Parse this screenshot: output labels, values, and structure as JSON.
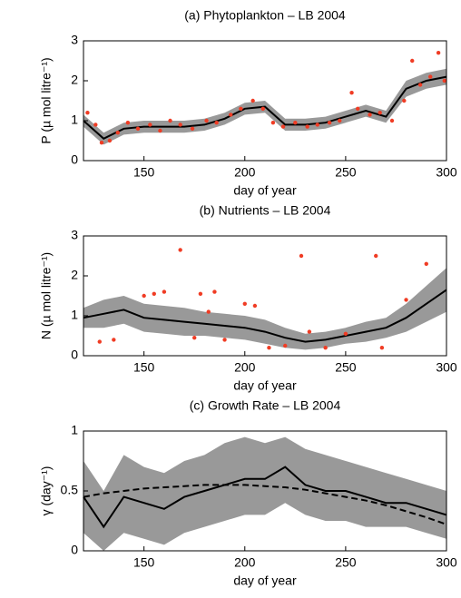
{
  "chart_data": [
    {
      "type": "line",
      "title": "(a) Phytoplankton – LB 2004",
      "xlabel": "day of year",
      "ylabel": "P (µ mol litre⁻¹)",
      "xlim": [
        120,
        300
      ],
      "ylim": [
        0,
        3
      ],
      "xticks": [
        150,
        200,
        250,
        300
      ],
      "yticks": [
        0,
        1,
        2,
        3
      ],
      "x": [
        120,
        130,
        140,
        150,
        160,
        170,
        180,
        190,
        200,
        210,
        220,
        230,
        240,
        250,
        260,
        270,
        280,
        290,
        300
      ],
      "band": {
        "color": "#999999",
        "upper": [
          1.15,
          0.7,
          0.95,
          1.0,
          1.0,
          1.0,
          1.05,
          1.2,
          1.45,
          1.5,
          1.05,
          1.05,
          1.1,
          1.25,
          1.4,
          1.25,
          2.0,
          2.2,
          2.3
        ],
        "lower": [
          0.85,
          0.4,
          0.65,
          0.7,
          0.7,
          0.7,
          0.75,
          0.9,
          1.15,
          1.2,
          0.75,
          0.75,
          0.8,
          0.95,
          1.1,
          0.95,
          1.6,
          1.8,
          1.9
        ]
      },
      "line": {
        "color": "#000000",
        "values": [
          1.0,
          0.55,
          0.8,
          0.85,
          0.85,
          0.85,
          0.9,
          1.05,
          1.3,
          1.35,
          0.9,
          0.9,
          0.95,
          1.1,
          1.25,
          1.1,
          1.8,
          2.0,
          2.1
        ]
      },
      "points": {
        "color": "#f03c24",
        "x": [
          122,
          126,
          129,
          133,
          137,
          142,
          147,
          153,
          158,
          163,
          168,
          174,
          181,
          186,
          193,
          198,
          204,
          209,
          214,
          219,
          225,
          231,
          236,
          242,
          247,
          253,
          256,
          262,
          267,
          273,
          279,
          283,
          287,
          292,
          296,
          299
        ],
        "values": [
          1.2,
          0.9,
          0.45,
          0.5,
          0.7,
          0.95,
          0.8,
          0.9,
          0.75,
          1.0,
          0.9,
          0.8,
          1.0,
          0.95,
          1.15,
          1.3,
          1.5,
          1.3,
          0.95,
          0.85,
          0.95,
          0.85,
          0.9,
          0.95,
          1.0,
          1.7,
          1.3,
          1.15,
          1.2,
          1.0,
          1.5,
          2.5,
          1.9,
          2.1,
          2.7,
          2.0
        ]
      }
    },
    {
      "type": "line",
      "title": "(b) Nutrients – LB 2004",
      "xlabel": "day of year",
      "ylabel": "N (µ mol litre⁻¹)",
      "xlim": [
        120,
        300
      ],
      "ylim": [
        0,
        3
      ],
      "xticks": [
        150,
        200,
        250,
        300
      ],
      "yticks": [
        0,
        1,
        2,
        3
      ],
      "x": [
        120,
        130,
        140,
        150,
        160,
        170,
        180,
        190,
        200,
        210,
        220,
        230,
        240,
        250,
        260,
        270,
        280,
        290,
        300
      ],
      "band": {
        "color": "#999999",
        "upper": [
          1.2,
          1.4,
          1.5,
          1.3,
          1.25,
          1.2,
          1.1,
          1.05,
          1.0,
          0.9,
          0.7,
          0.55,
          0.6,
          0.7,
          0.85,
          0.95,
          1.3,
          1.75,
          2.2
        ],
        "lower": [
          0.7,
          0.7,
          0.8,
          0.6,
          0.55,
          0.5,
          0.5,
          0.45,
          0.4,
          0.3,
          0.2,
          0.15,
          0.2,
          0.3,
          0.35,
          0.45,
          0.6,
          0.85,
          1.1
        ]
      },
      "line": {
        "color": "#000000",
        "values": [
          0.95,
          1.05,
          1.15,
          0.95,
          0.9,
          0.85,
          0.8,
          0.75,
          0.7,
          0.6,
          0.45,
          0.35,
          0.4,
          0.5,
          0.6,
          0.7,
          0.95,
          1.3,
          1.65
        ]
      },
      "points": {
        "color": "#f03c24",
        "x": [
          128,
          135,
          150,
          155,
          160,
          168,
          175,
          178,
          182,
          185,
          190,
          200,
          205,
          212,
          220,
          228,
          232,
          240,
          250,
          265,
          268,
          280,
          290
        ],
        "values": [
          0.35,
          0.4,
          1.5,
          1.55,
          1.6,
          2.65,
          0.45,
          1.55,
          1.1,
          1.6,
          0.4,
          1.3,
          1.25,
          0.2,
          0.25,
          2.5,
          0.6,
          0.2,
          0.55,
          2.5,
          0.2,
          1.4,
          2.3
        ]
      }
    },
    {
      "type": "line",
      "title": "(c) Growth Rate – LB 2004",
      "xlabel": "day of year",
      "ylabel": "γ (day⁻¹)",
      "xlim": [
        120,
        300
      ],
      "ylim": [
        0,
        1
      ],
      "xticks": [
        150,
        200,
        250,
        300
      ],
      "yticks": [
        0,
        0.5,
        1
      ],
      "x": [
        120,
        130,
        140,
        150,
        160,
        170,
        180,
        190,
        200,
        210,
        220,
        230,
        240,
        250,
        260,
        270,
        280,
        290,
        300
      ],
      "band": {
        "color": "#999999",
        "upper": [
          0.75,
          0.5,
          0.8,
          0.7,
          0.65,
          0.75,
          0.8,
          0.9,
          0.95,
          0.9,
          0.95,
          0.85,
          0.8,
          0.75,
          0.7,
          0.65,
          0.6,
          0.55,
          0.5
        ],
        "lower": [
          0.15,
          0.0,
          0.15,
          0.1,
          0.05,
          0.15,
          0.2,
          0.25,
          0.3,
          0.3,
          0.4,
          0.3,
          0.25,
          0.25,
          0.2,
          0.2,
          0.2,
          0.15,
          0.1
        ]
      },
      "line": {
        "color": "#000000",
        "values": [
          0.45,
          0.2,
          0.45,
          0.4,
          0.35,
          0.45,
          0.5,
          0.55,
          0.6,
          0.6,
          0.7,
          0.55,
          0.5,
          0.5,
          0.45,
          0.4,
          0.4,
          0.35,
          0.3
        ]
      },
      "line2": {
        "color": "#000000",
        "values": [
          0.45,
          0.48,
          0.5,
          0.52,
          0.53,
          0.54,
          0.55,
          0.55,
          0.55,
          0.54,
          0.53,
          0.51,
          0.48,
          0.45,
          0.42,
          0.38,
          0.33,
          0.28,
          0.22
        ]
      }
    }
  ]
}
